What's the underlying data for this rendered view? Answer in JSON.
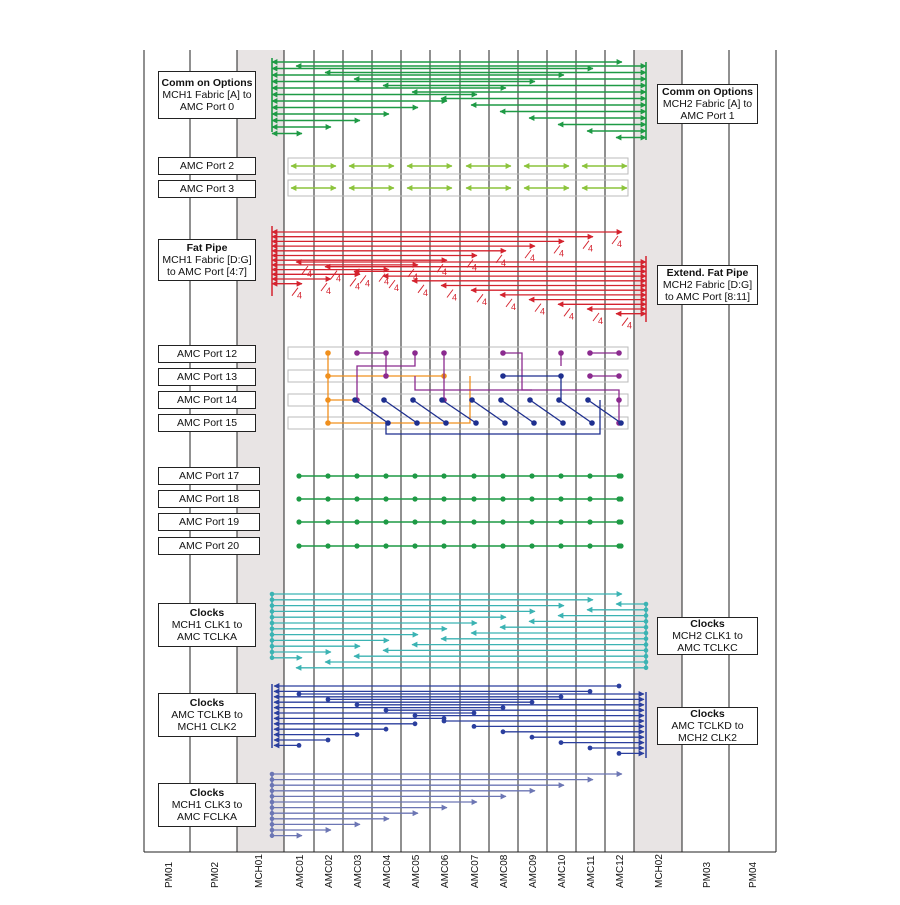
{
  "columns": [
    "PM01",
    "PM02",
    "MCH01",
    "AMC01",
    "AMC02",
    "AMC03",
    "AMC04",
    "AMC05",
    "AMC06",
    "AMC07",
    "AMC08",
    "AMC09",
    "AMC10",
    "AMC11",
    "AMC12",
    "MCH02",
    "PM03",
    "PM04"
  ],
  "left_labels": [
    {
      "key": "co1",
      "title": "Comm on Options",
      "lines": [
        "MCH1 Fabric [A] to",
        "AMC Port 0"
      ]
    },
    {
      "key": "p2",
      "title": "",
      "lines": [
        "AMC Port 2"
      ]
    },
    {
      "key": "p3",
      "title": "",
      "lines": [
        "AMC Port 3"
      ]
    },
    {
      "key": "fp1",
      "title": "Fat Pipe",
      "lines": [
        "MCH1 Fabric [D:G]",
        "to AMC Port [4:7]"
      ]
    },
    {
      "key": "p12",
      "title": "",
      "lines": [
        "AMC Port 12"
      ]
    },
    {
      "key": "p13",
      "title": "",
      "lines": [
        "AMC Port 13"
      ]
    },
    {
      "key": "p14",
      "title": "",
      "lines": [
        "AMC Port 14"
      ]
    },
    {
      "key": "p15",
      "title": "",
      "lines": [
        "AMC Port 15"
      ]
    },
    {
      "key": "p17",
      "title": "",
      "lines": [
        "AMC Port 17"
      ]
    },
    {
      "key": "p18",
      "title": "",
      "lines": [
        "AMC Port 18"
      ]
    },
    {
      "key": "p19",
      "title": "",
      "lines": [
        "AMC Port 19"
      ]
    },
    {
      "key": "p20",
      "title": "",
      "lines": [
        "AMC Port 20"
      ]
    },
    {
      "key": "clk1",
      "title": "Clocks",
      "lines": [
        "MCH1 CLK1 to",
        "AMC TCLKA"
      ]
    },
    {
      "key": "clk2",
      "title": "Clocks",
      "lines": [
        "AMC TCLKB to",
        "MCH1 CLK2"
      ]
    },
    {
      "key": "clk3",
      "title": "Clocks",
      "lines": [
        "MCH1 CLK3 to",
        "AMC FCLKA"
      ]
    }
  ],
  "right_labels": [
    {
      "key": "co2",
      "title": "Comm on Options",
      "lines": [
        "MCH2 Fabric [A] to",
        "AMC Port 1"
      ]
    },
    {
      "key": "fp2",
      "title": "Extend. Fat Pipe",
      "lines": [
        "MCH2 Fabric [D:G]",
        "to AMC Port [8:11]"
      ]
    },
    {
      "key": "clk4",
      "title": "Clocks",
      "lines": [
        "MCH2 CLK1 to",
        "AMC TCLKC"
      ]
    },
    {
      "key": "clk5",
      "title": "Clocks",
      "lines": [
        "AMC TCLKD to",
        "MCH2 CLK2"
      ]
    }
  ],
  "fat_pipe_width_label": "4",
  "colors": {
    "common_options": "#1e9a45",
    "port23": "#8cc43c",
    "fat_pipe": "#d4232e",
    "orange": "#f0901e",
    "purple": "#8b2a8f",
    "navy": "#1e2f8f",
    "green_dot": "#1e9a45",
    "teal": "#3bb3b3",
    "blue_clk": "#2b3f9e",
    "slate_clk": "#6c76b4",
    "mch_shade": "#e8e4e4"
  }
}
